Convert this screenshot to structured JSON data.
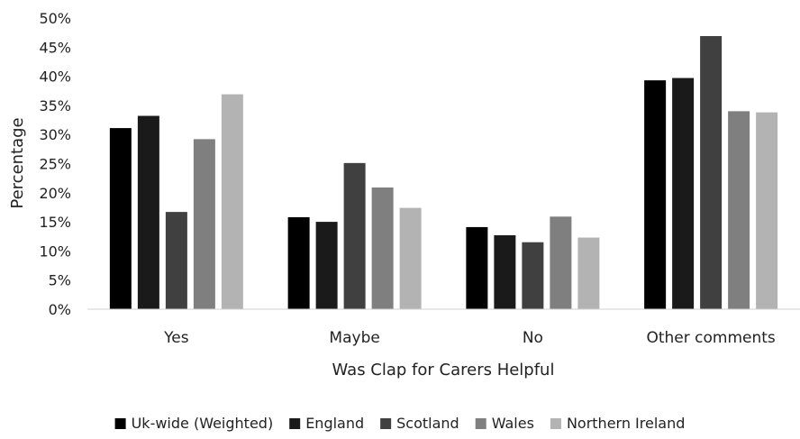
{
  "chart_data": {
    "type": "bar",
    "title": "",
    "xlabel": "Was Clap for Carers Helpful",
    "ylabel": "Percentage",
    "ylim": [
      0,
      50
    ],
    "ytick_step": 5,
    "ytick_suffix": "%",
    "grid": false,
    "legend_position": "bottom",
    "categories": [
      "Yes",
      "Maybe",
      "No",
      "Other comments"
    ],
    "series": [
      {
        "name": "Uk-wide (Weighted)",
        "color": "#000000",
        "values": [
          31.1,
          15.8,
          14.1,
          39.3
        ]
      },
      {
        "name": "England",
        "color": "#1a1a1a",
        "values": [
          33.2,
          15.0,
          12.7,
          39.7
        ]
      },
      {
        "name": "Scotland",
        "color": "#404040",
        "values": [
          16.7,
          25.1,
          11.5,
          46.9
        ]
      },
      {
        "name": "Wales",
        "color": "#7f7f7f",
        "values": [
          29.2,
          20.9,
          15.9,
          34.0
        ]
      },
      {
        "name": "Northern Ireland",
        "color": "#b3b3b3",
        "values": [
          36.9,
          17.4,
          12.3,
          33.8
        ]
      }
    ]
  }
}
